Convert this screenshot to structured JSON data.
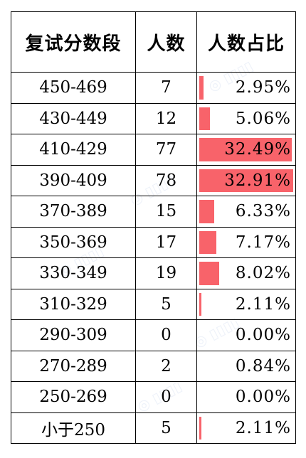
{
  "table": {
    "headers": [
      "复试分数段",
      "人数",
      "人数占比"
    ],
    "rows": [
      {
        "range": "450-469",
        "count": "7",
        "percent_label": "2.95%",
        "percent_value": 2.95
      },
      {
        "range": "430-449",
        "count": "12",
        "percent_label": "5.06%",
        "percent_value": 5.06
      },
      {
        "range": "410-429",
        "count": "77",
        "percent_label": "32.49%",
        "percent_value": 32.49
      },
      {
        "range": "390-409",
        "count": "78",
        "percent_label": "32.91%",
        "percent_value": 32.91
      },
      {
        "range": "370-389",
        "count": "15",
        "percent_label": "6.33%",
        "percent_value": 6.33
      },
      {
        "range": "350-369",
        "count": "17",
        "percent_label": "7.17%",
        "percent_value": 7.17
      },
      {
        "range": "330-349",
        "count": "19",
        "percent_label": "8.02%",
        "percent_value": 8.02
      },
      {
        "range": "310-329",
        "count": "5",
        "percent_label": "2.11%",
        "percent_value": 2.11
      },
      {
        "range": "290-309",
        "count": "0",
        "percent_label": "0.00%",
        "percent_value": 0.0
      },
      {
        "range": "270-289",
        "count": "2",
        "percent_label": "0.84%",
        "percent_value": 0.84
      },
      {
        "range": "250-269",
        "count": "0",
        "percent_label": "0.00%",
        "percent_value": 0.0
      },
      {
        "range": "小于250",
        "count": "5",
        "percent_label": "2.11%",
        "percent_value": 2.11
      }
    ]
  },
  "colors": {
    "bar": "#f8636a",
    "border": "#000000"
  }
}
